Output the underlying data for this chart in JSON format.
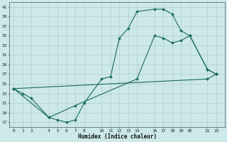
{
  "xlabel": "Humidex (Indice chaleur)",
  "background_color": "#cce8e8",
  "grid_color": "#b0cccc",
  "line_color": "#1a6b5a",
  "xticks": [
    0,
    1,
    2,
    4,
    5,
    6,
    7,
    8,
    10,
    11,
    12,
    13,
    14,
    16,
    17,
    18,
    19,
    20,
    22,
    23
  ],
  "yticks": [
    17,
    19,
    21,
    23,
    25,
    27,
    29,
    31,
    33,
    35,
    37,
    39,
    41
  ],
  "ylim": [
    16.0,
    42.0
  ],
  "xlim": [
    -0.5,
    24.0
  ],
  "line1_x": [
    0,
    1,
    2,
    4,
    5,
    6,
    7,
    8,
    10,
    11,
    12,
    13,
    14,
    16,
    17,
    18,
    19,
    20,
    22,
    23
  ],
  "line1_y": [
    24,
    23,
    22,
    18,
    17.5,
    17,
    17.5,
    21,
    26,
    26.5,
    34.5,
    36.5,
    40,
    40.5,
    40.5,
    39.5,
    36,
    35,
    28,
    27
  ],
  "line2_x": [
    0,
    22,
    23
  ],
  "line2_y": [
    24,
    26,
    27
  ],
  "line3_x": [
    0,
    4,
    7,
    14,
    16,
    17,
    18,
    19,
    20,
    22,
    23
  ],
  "line3_y": [
    24,
    18,
    20.5,
    26,
    35,
    34.5,
    33.5,
    34,
    35,
    28,
    27
  ],
  "figsize": [
    3.2,
    2.0
  ],
  "dpi": 100
}
